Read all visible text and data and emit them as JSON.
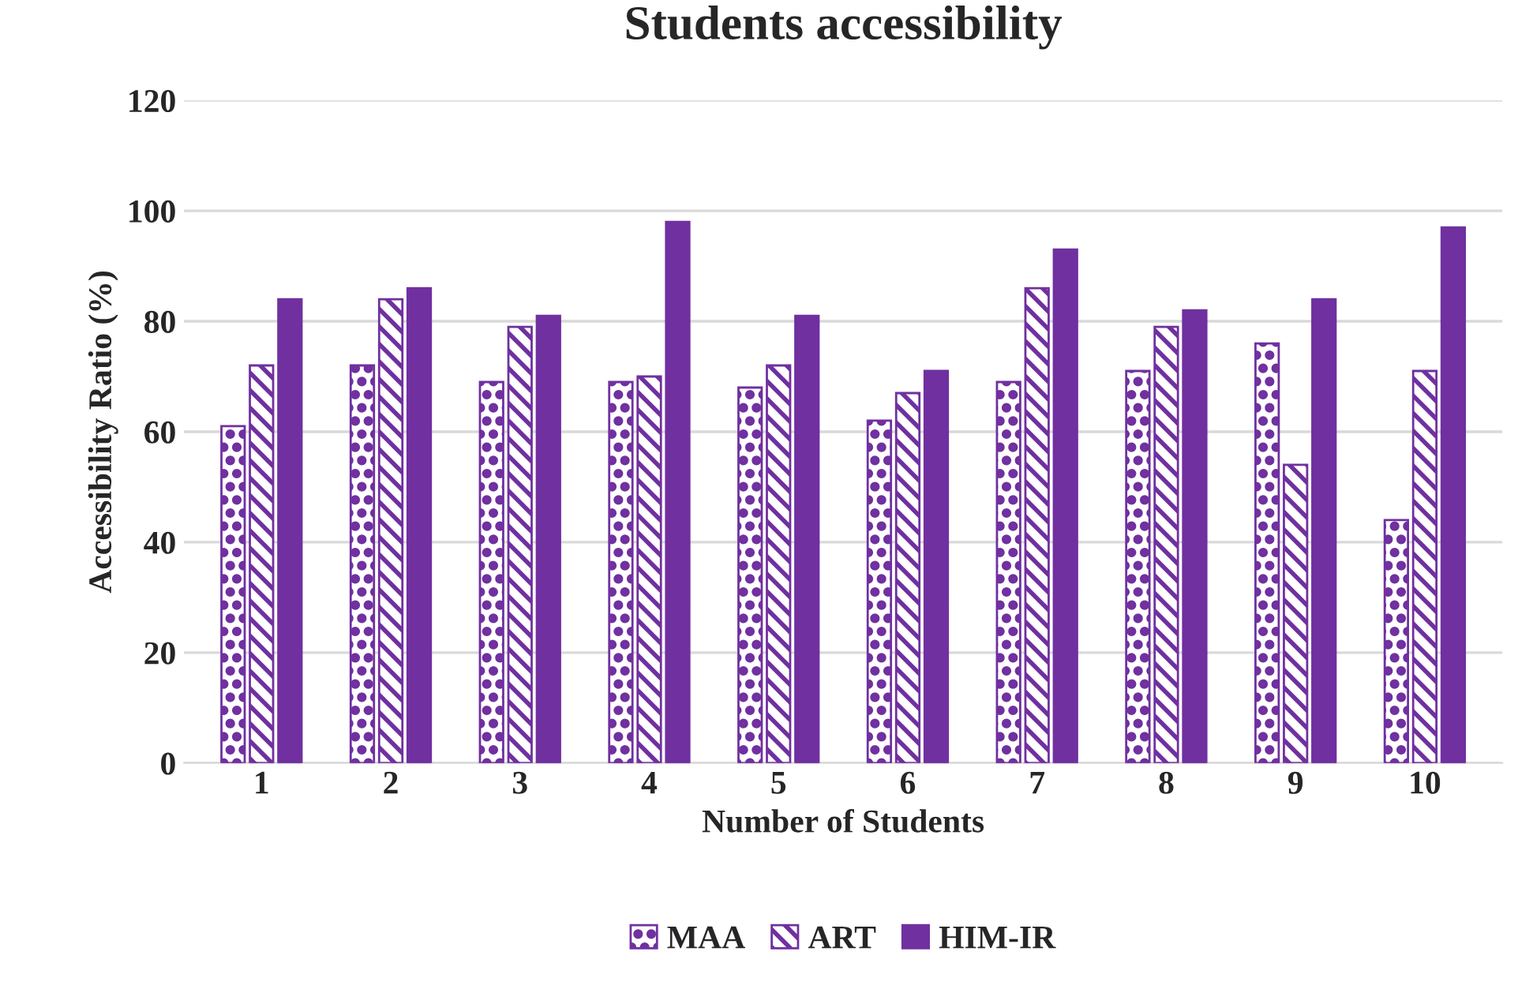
{
  "chart_data": {
    "type": "bar",
    "title": "Students accessibility",
    "xlabel": "Number of Students",
    "ylabel": "Accessibility Ratio (%)",
    "categories": [
      "1",
      "2",
      "3",
      "4",
      "5",
      "6",
      "7",
      "8",
      "9",
      "10"
    ],
    "series": [
      {
        "name": "MAA",
        "color": "#7030a0",
        "values": [
          61,
          72,
          69,
          69,
          68,
          62,
          69,
          71,
          76,
          44
        ]
      },
      {
        "name": "ART",
        "color": "#7030a0",
        "values": [
          72,
          84,
          79,
          70,
          72,
          67,
          86,
          79,
          54,
          71
        ]
      },
      {
        "name": "HIM-IR",
        "color": "#7030a0",
        "values": [
          84,
          86,
          81,
          98,
          81,
          71,
          93,
          82,
          84,
          97
        ]
      }
    ],
    "ylim": [
      0,
      120
    ],
    "yticks": [
      0,
      20,
      40,
      60,
      80,
      100,
      120
    ],
    "grid": "y",
    "legend": "bottom"
  }
}
